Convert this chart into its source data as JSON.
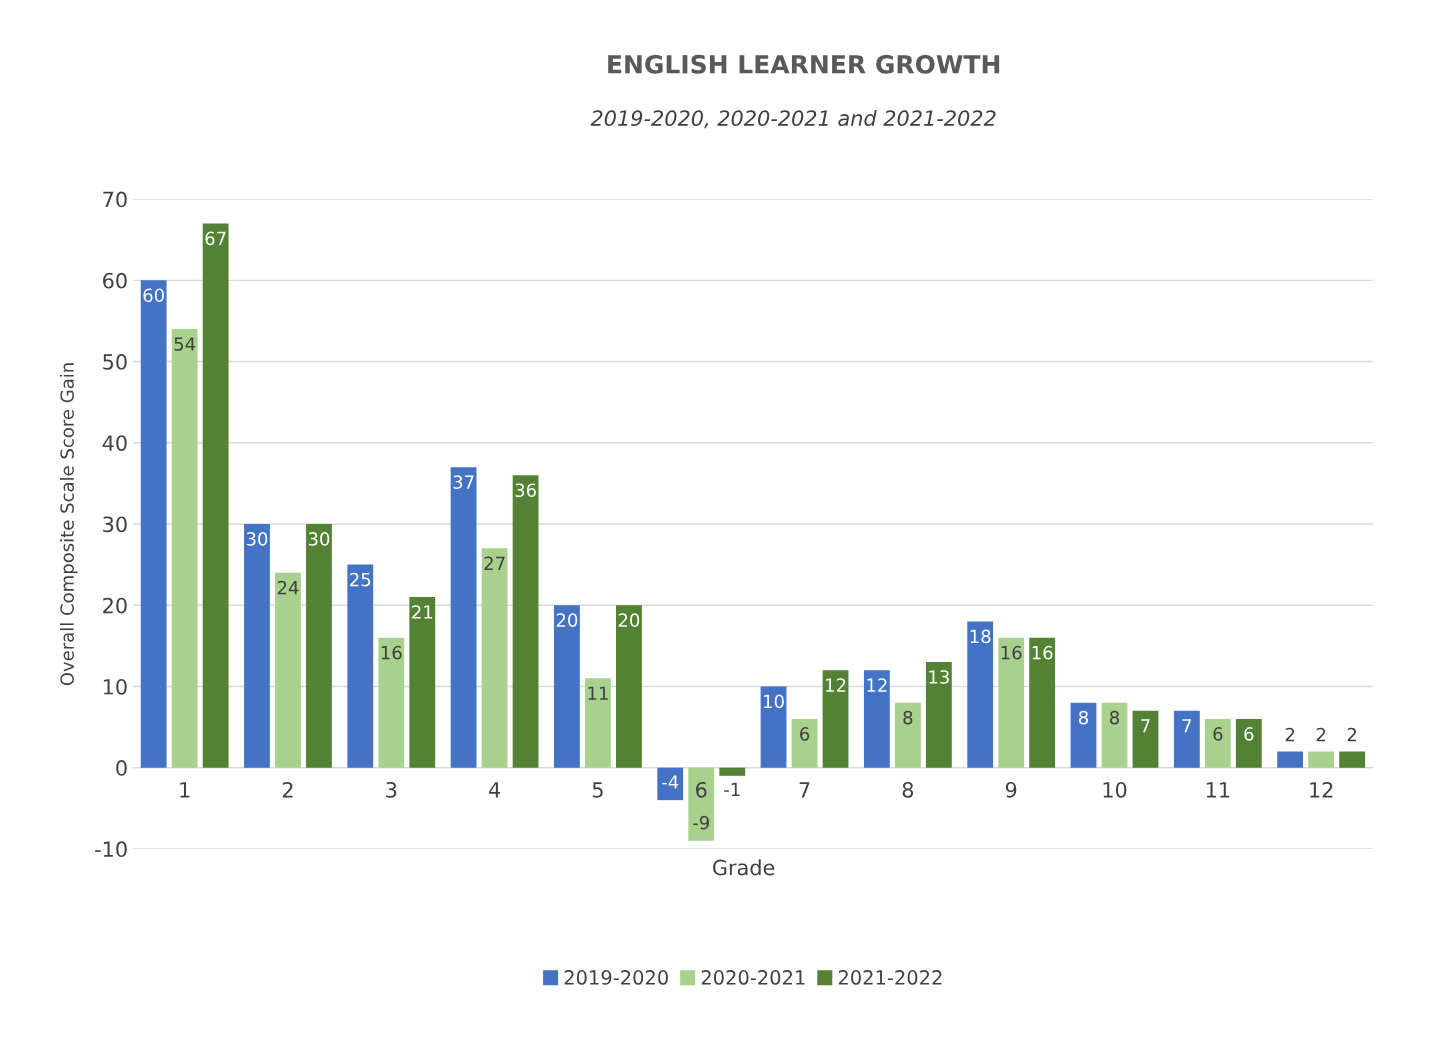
{
  "chart_data": {
    "type": "bar",
    "title": "ENGLISH LEARNER GROWTH",
    "subtitle": "2019-2020, 2020-2021 and 2021-2022",
    "xlabel": "Grade",
    "ylabel": "Overall Composite Scale Score Gain",
    "categories": [
      "1",
      "2",
      "3",
      "4",
      "5",
      "6",
      "7",
      "8",
      "9",
      "10",
      "11",
      "12"
    ],
    "series": [
      {
        "name": "2019-2020",
        "color": "#4472c4",
        "values": [
          60,
          30,
          25,
          37,
          20,
          -4,
          10,
          12,
          18,
          8,
          7,
          2
        ]
      },
      {
        "name": "2020-2021",
        "color": "#a9d18e",
        "values": [
          54,
          24,
          16,
          27,
          11,
          -9,
          6,
          8,
          16,
          8,
          6,
          2
        ]
      },
      {
        "name": "2021-2022",
        "color": "#548235",
        "values": [
          67,
          30,
          21,
          36,
          20,
          -1,
          12,
          13,
          16,
          7,
          6,
          2
        ]
      }
    ],
    "ylim": [
      -10,
      70
    ],
    "yticks": [
      -10,
      0,
      10,
      20,
      30,
      40,
      50,
      60,
      70
    ],
    "grid": "y",
    "legend": "bottom",
    "data_labels": true
  }
}
